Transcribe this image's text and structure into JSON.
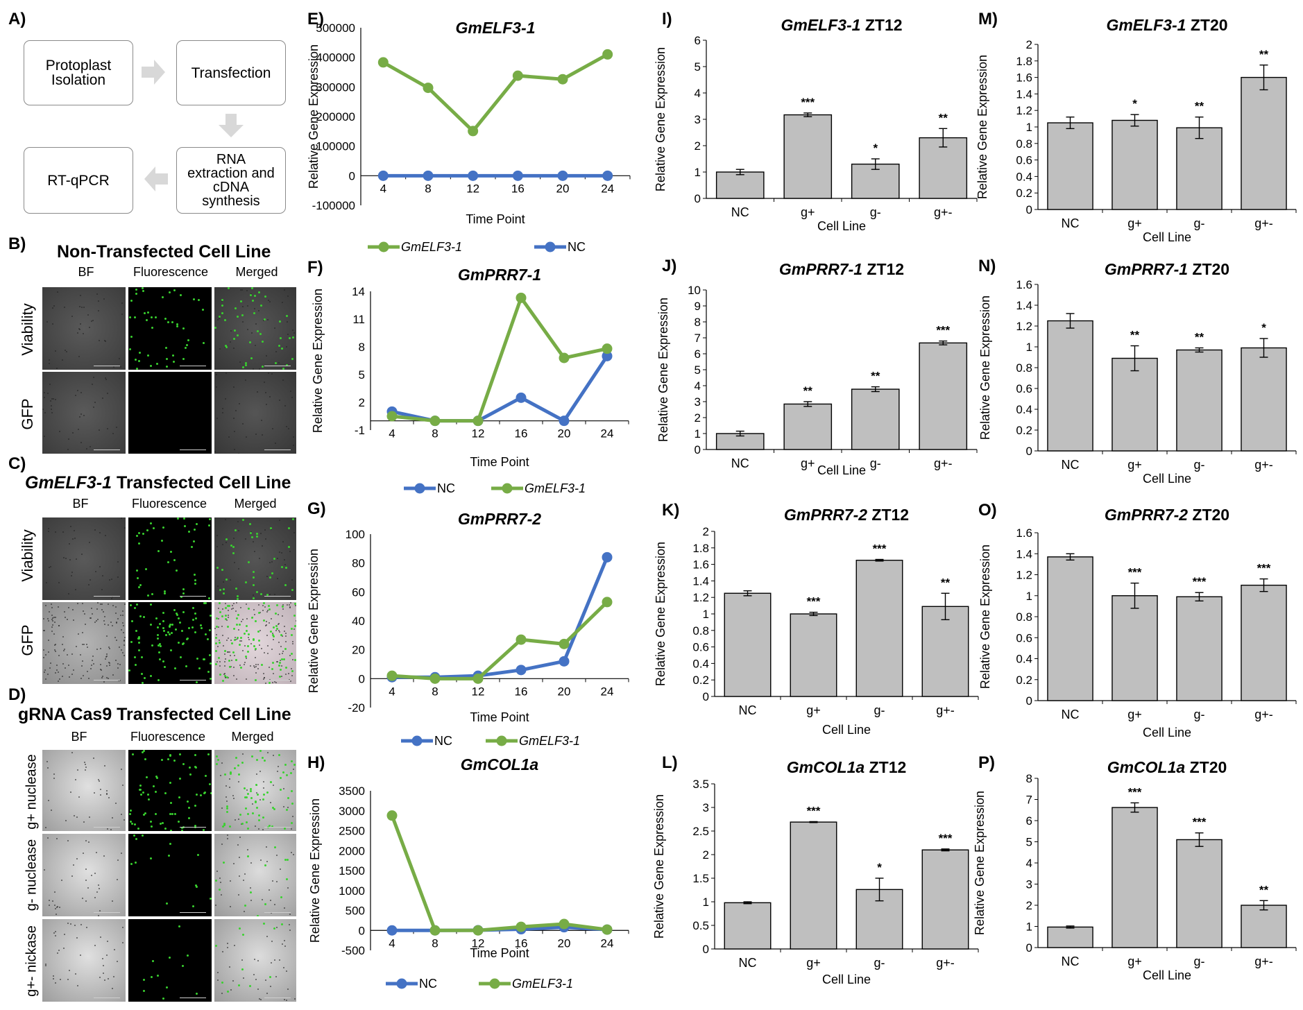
{
  "labels": {
    "A": "A)",
    "B": "B)",
    "C": "C)",
    "D": "D)",
    "E": "E)",
    "F": "F)",
    "G": "G)",
    "H": "H)",
    "I": "I)",
    "J": "J)",
    "K": "K)",
    "L": "L)",
    "M": "M)",
    "N": "N)",
    "O": "O)",
    "P": "P)"
  },
  "workflow": {
    "box1": "Protoplast\nIsolation",
    "box2": "Transfection",
    "box3": "RNA\nextraction and\ncDNA\nsynthesis",
    "box4": "RT-qPCR"
  },
  "cell_lines": {
    "B": {
      "title": "Non-Transfected Cell Line",
      "italic": "",
      "cols": [
        "BF",
        "Fluorescence",
        "Merged"
      ],
      "rows": [
        "Viability",
        "GFP"
      ]
    },
    "C": {
      "title": " Transfected Cell Line",
      "italic": "GmELF3-1",
      "cols": [
        "BF",
        "Fluorescence",
        "Merged"
      ],
      "rows": [
        "Viability",
        "GFP"
      ]
    },
    "D": {
      "title": "gRNA Cas9 Transfected Cell Line",
      "italic": "",
      "cols": [
        "BF",
        "Fluorescence",
        "Merged"
      ],
      "rows": [
        "g+ nuclease",
        "g- nuclease",
        "g+- nickase"
      ]
    }
  },
  "colors": {
    "green": "#77ac46",
    "blue": "#4472c4",
    "bar": "#bfbfbf",
    "bar_edge": "#000000"
  },
  "chart_data": [
    {
      "id": "E",
      "type": "line",
      "title": "GmELF3-1",
      "xlabel": "Time Point",
      "ylabel": "Relative Gene Expression",
      "x": [
        4,
        8,
        12,
        16,
        20,
        24
      ],
      "ylim": [
        -100000,
        500000
      ],
      "yticks": [
        "500000",
        "400000",
        "300000",
        "200000",
        "100000",
        "0",
        "-100000"
      ],
      "series": [
        {
          "name": "GmELF3-1",
          "color": "#77ac46",
          "values": [
            383000,
            297000,
            151000,
            338000,
            326000,
            410000
          ]
        },
        {
          "name": "NC",
          "color": "#4472c4",
          "values": [
            0,
            0,
            0,
            0,
            0,
            0
          ]
        }
      ],
      "legend": [
        "GmELF3-1",
        "NC"
      ]
    },
    {
      "id": "F",
      "type": "line",
      "title": "GmPRR7-1",
      "xlabel": "Time Point",
      "ylabel": "Relative Gene Expression",
      "x": [
        4,
        8,
        12,
        16,
        20,
        24
      ],
      "ylim": [
        -1,
        14
      ],
      "yticks": [
        "14",
        "11",
        "8",
        "5",
        "2",
        "-1"
      ],
      "series": [
        {
          "name": "NC",
          "color": "#4472c4",
          "values": [
            1.0,
            0.0,
            0.0,
            2.5,
            0.0,
            7.0
          ]
        },
        {
          "name": "GmELF3-1",
          "color": "#77ac46",
          "values": [
            0.5,
            0.0,
            0.0,
            13.3,
            6.8,
            7.8
          ]
        }
      ],
      "legend": [
        "NC",
        "GmELF3-1"
      ]
    },
    {
      "id": "G",
      "type": "line",
      "title": "GmPRR7-2",
      "xlabel": "Time Point",
      "ylabel": "Relative Gene Expression",
      "x": [
        4,
        8,
        12,
        16,
        20,
        24
      ],
      "ylim": [
        -20,
        100
      ],
      "yticks": [
        "100",
        "80",
        "60",
        "40",
        "20",
        "0",
        "-20"
      ],
      "series": [
        {
          "name": "NC",
          "color": "#4472c4",
          "values": [
            1,
            1,
            2,
            6,
            12,
            84
          ]
        },
        {
          "name": "GmELF3-1",
          "color": "#77ac46",
          "values": [
            2,
            0,
            0,
            27,
            24,
            53
          ]
        }
      ],
      "legend": [
        "NC",
        "GmELF3-1"
      ]
    },
    {
      "id": "H",
      "type": "line",
      "title": "GmCOL1a",
      "xlabel": "Time Point",
      "ylabel": "Relative Gene Expression",
      "x": [
        4,
        8,
        12,
        16,
        20,
        24
      ],
      "ylim": [
        -500,
        3500
      ],
      "yticks": [
        "3500",
        "3000",
        "2500",
        "2000",
        "1500",
        "1000",
        "500",
        "0",
        "-500"
      ],
      "series": [
        {
          "name": "NC",
          "color": "#4472c4",
          "values": [
            0,
            0,
            5,
            30,
            80,
            20
          ]
        },
        {
          "name": "GmELF3-1",
          "color": "#77ac46",
          "values": [
            2880,
            0,
            0,
            90,
            160,
            20
          ]
        }
      ],
      "legend": [
        "NC",
        "GmELF3-1"
      ]
    },
    {
      "id": "I",
      "type": "bar",
      "title": "GmELF3-1",
      "title_suffix": " ZT12",
      "xlabel": "Cell Line",
      "ylabel": "Relative Gene Expression",
      "categories": [
        "NC",
        "g+",
        "g-",
        "g+-"
      ],
      "ylim": [
        0,
        6
      ],
      "yticks": [
        "6",
        "5",
        "4",
        "3",
        "2",
        "1",
        "0"
      ],
      "values": [
        1.0,
        3.17,
        1.3,
        2.3
      ],
      "errors": [
        0.1,
        0.07,
        0.2,
        0.35
      ],
      "sig": [
        "",
        "***",
        "*",
        "**"
      ]
    },
    {
      "id": "M",
      "type": "bar",
      "title": "GmELF3-1",
      "title_suffix": " ZT20",
      "xlabel": "Cell Line",
      "ylabel": "Relative Gene Expression",
      "categories": [
        "NC",
        "g+",
        "g-",
        "g+-"
      ],
      "ylim": [
        0,
        2
      ],
      "yticks": [
        "2",
        "1.8",
        "1.6",
        "1.4",
        "1.2",
        "1",
        "0.8",
        "0.6",
        "0.4",
        "0.2",
        "0"
      ],
      "values": [
        1.05,
        1.08,
        0.99,
        1.6
      ],
      "errors": [
        0.07,
        0.07,
        0.13,
        0.15
      ],
      "sig": [
        "",
        "*",
        "**",
        "**"
      ]
    },
    {
      "id": "J",
      "type": "bar",
      "title": "GmPRR7-1",
      "title_suffix": " ZT12",
      "xlabel": "Cell Line",
      "ylabel": "Relative Gene Expression",
      "categories": [
        "NC",
        "g+",
        "g-",
        "g+-"
      ],
      "ylim": [
        0,
        10
      ],
      "yticks": [
        "10",
        "9",
        "8",
        "7",
        "6",
        "5",
        "4",
        "3",
        "2",
        "1",
        "0"
      ],
      "values": [
        1.0,
        2.85,
        3.78,
        6.68
      ],
      "errors": [
        0.15,
        0.15,
        0.15,
        0.12
      ],
      "sig": [
        "",
        "**",
        "**",
        "***"
      ]
    },
    {
      "id": "N",
      "type": "bar",
      "title": "GmPRR7-1",
      "title_suffix": " ZT20",
      "xlabel": "Cell Line",
      "ylabel": "Relative Gene Expression",
      "categories": [
        "NC",
        "g+",
        "g-",
        "g+-"
      ],
      "ylim": [
        0,
        1.6
      ],
      "yticks": [
        "1.6",
        "1.4",
        "1.2",
        "1",
        "0.8",
        "0.6",
        "0.4",
        "0.2",
        "0"
      ],
      "values": [
        1.25,
        0.89,
        0.97,
        0.99
      ],
      "errors": [
        0.07,
        0.12,
        0.02,
        0.09
      ],
      "sig": [
        "",
        "**",
        "**",
        "*"
      ]
    },
    {
      "id": "K",
      "type": "bar",
      "title": "GmPRR7-2",
      "title_suffix": " ZT12",
      "xlabel": "Cell Line",
      "ylabel": "Relative Gene Expression",
      "categories": [
        "NC",
        "g+",
        "g-",
        "g+-"
      ],
      "ylim": [
        0,
        2
      ],
      "yticks": [
        "2",
        "1.8",
        "1.6",
        "1.4",
        "1.2",
        "1",
        "0.8",
        "0.6",
        "0.4",
        "0.2",
        "0"
      ],
      "values": [
        1.25,
        1.0,
        1.65,
        1.09
      ],
      "errors": [
        0.03,
        0.02,
        0.01,
        0.16
      ],
      "sig": [
        "",
        "***",
        "***",
        "**"
      ]
    },
    {
      "id": "O",
      "type": "bar",
      "title": "GmPRR7-2",
      "title_suffix": " ZT20",
      "xlabel": "Cell Line",
      "ylabel": "Relative Gene Expression",
      "categories": [
        "NC",
        "g+",
        "g-",
        "g+-"
      ],
      "ylim": [
        0,
        1.6
      ],
      "yticks": [
        "1.6",
        "1.4",
        "1.2",
        "1",
        "0.8",
        "0.6",
        "0.4",
        "0.2",
        "0"
      ],
      "values": [
        1.37,
        1.0,
        0.99,
        1.1
      ],
      "errors": [
        0.03,
        0.12,
        0.04,
        0.06
      ],
      "sig": [
        "",
        "***",
        "***",
        "***"
      ]
    },
    {
      "id": "L",
      "type": "bar",
      "title": "GmCOL1a",
      "title_suffix": " ZT12",
      "xlabel": "Cell Line",
      "ylabel": "Relative Gene Expression",
      "categories": [
        "NC",
        "g+",
        "g-",
        "g+-"
      ],
      "ylim": [
        0,
        3.5
      ],
      "yticks": [
        "3.5",
        "3",
        "2.5",
        "2",
        "1.5",
        "1",
        "0.5",
        "0"
      ],
      "values": [
        0.98,
        2.69,
        1.26,
        2.1
      ],
      "errors": [
        0.02,
        0.01,
        0.24,
        0.02
      ],
      "sig": [
        "",
        "***",
        "*",
        "***"
      ]
    },
    {
      "id": "P",
      "type": "bar",
      "title": "GmCOL1a",
      "title_suffix": " ZT20",
      "xlabel": "Cell Line",
      "ylabel": "Relative Gene Expression",
      "categories": [
        "NC",
        "g+",
        "g-",
        "g+-"
      ],
      "ylim": [
        0,
        8
      ],
      "yticks": [
        "8",
        "7",
        "6",
        "5",
        "4",
        "3",
        "2",
        "1",
        "0"
      ],
      "values": [
        0.97,
        6.62,
        5.1,
        2.0
      ],
      "errors": [
        0.05,
        0.22,
        0.32,
        0.22
      ],
      "sig": [
        "",
        "***",
        "***",
        "**"
      ]
    }
  ]
}
